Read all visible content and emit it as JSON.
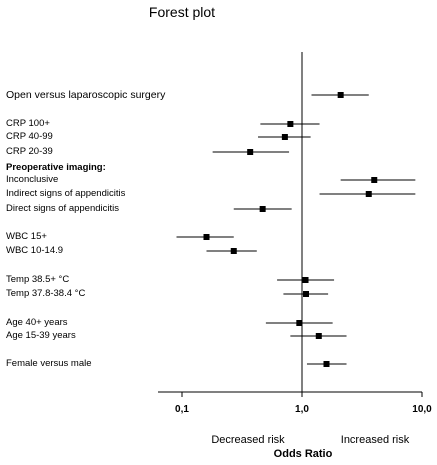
{
  "chart_data": {
    "type": "forest",
    "title": "Forest plot",
    "xlabel": "Odds Ratio",
    "xscale": "log",
    "xlim": [
      0.06,
      10
    ],
    "xticks": [
      {
        "value": 0.1,
        "label": "0,1"
      },
      {
        "value": 1,
        "label": "1,0"
      },
      {
        "value": 10,
        "label": "10,0"
      }
    ],
    "reference_line": 1,
    "direction_labels": {
      "left": "Decreased risk",
      "right": "Increased risk"
    },
    "rows": [
      {
        "label": "Open versus laparoscopic surgery",
        "or": 2.1,
        "lo": 1.2,
        "hi": 3.6,
        "heading": false
      },
      {
        "label": "CRP 100+",
        "or": 0.8,
        "lo": 0.45,
        "hi": 1.4,
        "heading": false
      },
      {
        "label": "CRP 40-99",
        "or": 0.72,
        "lo": 0.43,
        "hi": 1.18,
        "heading": false
      },
      {
        "label": "CRP 20-39",
        "or": 0.37,
        "lo": 0.18,
        "hi": 0.78,
        "heading": false
      },
      {
        "label": "Preoperative imaging:",
        "heading": true
      },
      {
        "label": "Inconclusive",
        "or": 4.0,
        "lo": 2.1,
        "hi": 8.8,
        "heading": false
      },
      {
        "label": "Indirect signs of appendicitis",
        "or": 3.6,
        "lo": 1.4,
        "hi": 8.8,
        "heading": false
      },
      {
        "label": "Direct signs of appendicitis",
        "or": 0.47,
        "lo": 0.27,
        "hi": 0.82,
        "heading": false
      },
      {
        "label": "WBC 15+",
        "or": 0.16,
        "lo": 0.09,
        "hi": 0.27,
        "heading": false
      },
      {
        "label": "WBC 10-14.9",
        "or": 0.27,
        "lo": 0.16,
        "hi": 0.42,
        "heading": false
      },
      {
        "label": "Temp 38.5+ °C",
        "or": 1.07,
        "lo": 0.62,
        "hi": 1.85,
        "heading": false
      },
      {
        "label": "Temp 37.8-38.4 °C",
        "or": 1.08,
        "lo": 0.7,
        "hi": 1.65,
        "heading": false
      },
      {
        "label": "Age 40+ years",
        "or": 0.95,
        "lo": 0.5,
        "hi": 1.8,
        "heading": false
      },
      {
        "label": "Age 15-39 years",
        "or": 1.38,
        "lo": 0.8,
        "hi": 2.35,
        "heading": false
      },
      {
        "label": "Female versus male",
        "or": 1.6,
        "lo": 1.1,
        "hi": 2.35,
        "heading": false
      }
    ]
  }
}
